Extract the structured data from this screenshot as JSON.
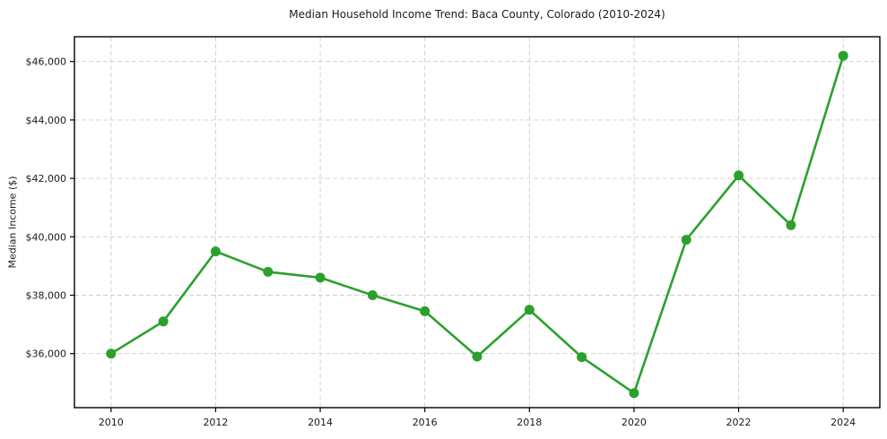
{
  "chart_data": {
    "type": "line",
    "title": "Median Household Income Trend: Baca County, Colorado (2010-2024)",
    "xlabel": "",
    "ylabel": "Median Income ($)",
    "series": [
      {
        "name": "Median Household Income",
        "x": [
          2010,
          2011,
          2012,
          2013,
          2014,
          2015,
          2016,
          2017,
          2018,
          2019,
          2020,
          2021,
          2022,
          2023,
          2024
        ],
        "y": [
          36000,
          37100,
          39500,
          38800,
          38600,
          38000,
          37450,
          35900,
          37500,
          35880,
          34650,
          39900,
          42100,
          40400,
          46200
        ]
      }
    ],
    "x_ticks": [
      2010,
      2012,
      2014,
      2016,
      2018,
      2020,
      2022,
      2024
    ],
    "y_ticks": [
      36000,
      38000,
      40000,
      42000,
      44000,
      46000
    ],
    "y_tick_prefix": "$",
    "xlim": [
      2009.3,
      2024.7
    ],
    "ylim": [
      34150,
      46850
    ],
    "grid": true,
    "legend": false,
    "colors": {
      "line": "#2ca02c",
      "marker": "#2ca02c",
      "grid": "#cccccc",
      "spine": "#000000",
      "text": "#1a1a1a",
      "background": "#ffffff"
    }
  }
}
